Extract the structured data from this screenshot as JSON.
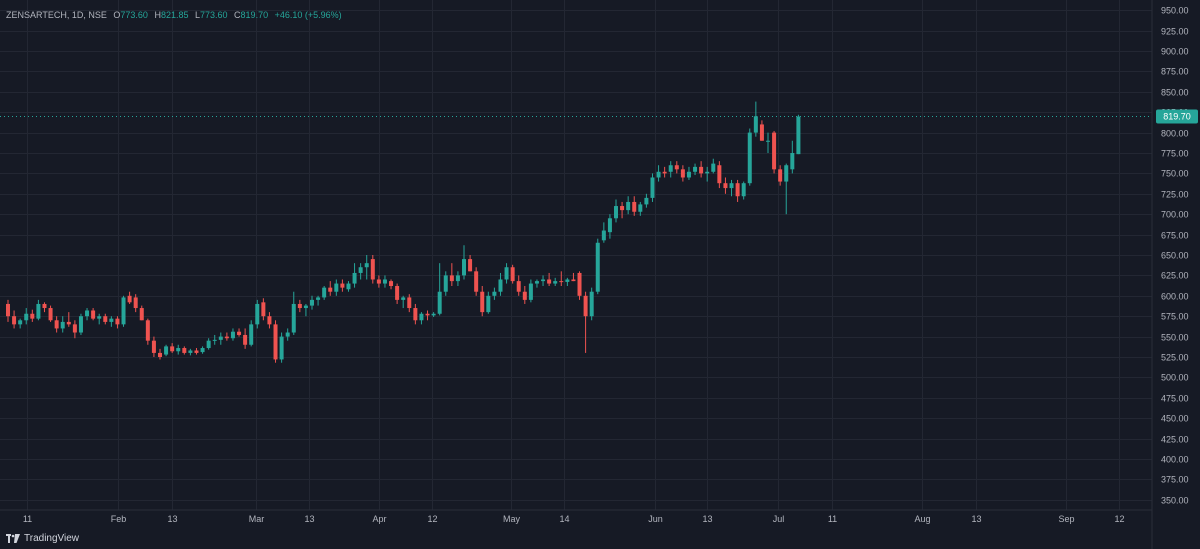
{
  "legend": {
    "symbol": "ZENSARTECH, 1D, NSE",
    "open_label": "O",
    "open": "773.60",
    "high_label": "H",
    "high": "821.85",
    "low_label": "L",
    "low": "773.60",
    "close_label": "C",
    "close": "819.70",
    "change": "+46.10 (+5.96%)"
  },
  "footer": {
    "brand": "TradingView",
    "logo_icon": "tradingview-logo-icon"
  },
  "colors": {
    "background": "#161a25",
    "up": "#26a69a",
    "down": "#ef5350",
    "grid": "#232733",
    "axis_text": "#b2b5be",
    "price_tag": "#26a69a"
  },
  "chart_data": {
    "type": "candlestick",
    "ylim": [
      337.5,
      962.5
    ],
    "y_ticks": [
      "350.00",
      "375.00",
      "400.00",
      "425.00",
      "450.00",
      "475.00",
      "500.00",
      "525.00",
      "550.00",
      "575.00",
      "600.00",
      "625.00",
      "650.00",
      "675.00",
      "700.00",
      "725.00",
      "750.00",
      "775.00",
      "800.00",
      "825.00",
      "850.00",
      "875.00",
      "900.00",
      "925.00",
      "950.00"
    ],
    "x_ticks": [
      "11",
      "Feb",
      "13",
      "Mar",
      "13",
      "Apr",
      "12",
      "May",
      "14",
      "Jun",
      "13",
      "Jul",
      "11",
      "Aug",
      "13",
      "Sep",
      "12"
    ],
    "last_price": "819.70",
    "series": [
      {
        "o": 590,
        "h": 595,
        "l": 568,
        "c": 575
      },
      {
        "o": 575,
        "h": 582,
        "l": 560,
        "c": 565
      },
      {
        "o": 565,
        "h": 572,
        "l": 560,
        "c": 570
      },
      {
        "o": 570,
        "h": 585,
        "l": 565,
        "c": 578
      },
      {
        "o": 578,
        "h": 583,
        "l": 568,
        "c": 572
      },
      {
        "o": 572,
        "h": 595,
        "l": 570,
        "c": 590
      },
      {
        "o": 590,
        "h": 592,
        "l": 580,
        "c": 585
      },
      {
        "o": 585,
        "h": 588,
        "l": 568,
        "c": 570
      },
      {
        "o": 570,
        "h": 575,
        "l": 555,
        "c": 560
      },
      {
        "o": 560,
        "h": 575,
        "l": 555,
        "c": 568
      },
      {
        "o": 568,
        "h": 580,
        "l": 562,
        "c": 565
      },
      {
        "o": 565,
        "h": 570,
        "l": 548,
        "c": 555
      },
      {
        "o": 555,
        "h": 578,
        "l": 552,
        "c": 575
      },
      {
        "o": 575,
        "h": 585,
        "l": 570,
        "c": 582
      },
      {
        "o": 582,
        "h": 585,
        "l": 570,
        "c": 572
      },
      {
        "o": 572,
        "h": 578,
        "l": 565,
        "c": 575
      },
      {
        "o": 575,
        "h": 578,
        "l": 565,
        "c": 568
      },
      {
        "o": 568,
        "h": 575,
        "l": 562,
        "c": 572
      },
      {
        "o": 572,
        "h": 575,
        "l": 560,
        "c": 565
      },
      {
        "o": 565,
        "h": 600,
        "l": 562,
        "c": 598
      },
      {
        "o": 600,
        "h": 605,
        "l": 590,
        "c": 592
      },
      {
        "o": 598,
        "h": 602,
        "l": 580,
        "c": 585
      },
      {
        "o": 585,
        "h": 588,
        "l": 570,
        "c": 570
      },
      {
        "o": 570,
        "h": 572,
        "l": 540,
        "c": 545
      },
      {
        "o": 545,
        "h": 550,
        "l": 525,
        "c": 530
      },
      {
        "o": 530,
        "h": 535,
        "l": 522,
        "c": 525
      },
      {
        "o": 528,
        "h": 540,
        "l": 526,
        "c": 538
      },
      {
        "o": 538,
        "h": 542,
        "l": 530,
        "c": 532
      },
      {
        "o": 532,
        "h": 540,
        "l": 528,
        "c": 536
      },
      {
        "o": 536,
        "h": 538,
        "l": 528,
        "c": 530
      },
      {
        "o": 530,
        "h": 535,
        "l": 527,
        "c": 533
      },
      {
        "o": 533,
        "h": 536,
        "l": 528,
        "c": 530
      },
      {
        "o": 531,
        "h": 538,
        "l": 529,
        "c": 536
      },
      {
        "o": 536,
        "h": 548,
        "l": 534,
        "c": 545
      },
      {
        "o": 545,
        "h": 552,
        "l": 540,
        "c": 546
      },
      {
        "o": 546,
        "h": 555,
        "l": 540,
        "c": 550
      },
      {
        "o": 550,
        "h": 555,
        "l": 545,
        "c": 548
      },
      {
        "o": 548,
        "h": 560,
        "l": 545,
        "c": 556
      },
      {
        "o": 556,
        "h": 560,
        "l": 550,
        "c": 552
      },
      {
        "o": 552,
        "h": 560,
        "l": 535,
        "c": 540
      },
      {
        "o": 540,
        "h": 570,
        "l": 538,
        "c": 565
      },
      {
        "o": 565,
        "h": 595,
        "l": 560,
        "c": 590
      },
      {
        "o": 592,
        "h": 597,
        "l": 570,
        "c": 575
      },
      {
        "o": 575,
        "h": 580,
        "l": 560,
        "c": 565
      },
      {
        "o": 565,
        "h": 570,
        "l": 518,
        "c": 522
      },
      {
        "o": 522,
        "h": 555,
        "l": 518,
        "c": 550
      },
      {
        "o": 550,
        "h": 560,
        "l": 545,
        "c": 555
      },
      {
        "o": 555,
        "h": 605,
        "l": 552,
        "c": 590
      },
      {
        "o": 590,
        "h": 595,
        "l": 580,
        "c": 585
      },
      {
        "o": 585,
        "h": 590,
        "l": 575,
        "c": 588
      },
      {
        "o": 588,
        "h": 600,
        "l": 583,
        "c": 595
      },
      {
        "o": 595,
        "h": 600,
        "l": 588,
        "c": 598
      },
      {
        "o": 598,
        "h": 612,
        "l": 595,
        "c": 610
      },
      {
        "o": 610,
        "h": 618,
        "l": 600,
        "c": 605
      },
      {
        "o": 605,
        "h": 620,
        "l": 600,
        "c": 615
      },
      {
        "o": 615,
        "h": 620,
        "l": 605,
        "c": 610
      },
      {
        "o": 608,
        "h": 618,
        "l": 605,
        "c": 615
      },
      {
        "o": 615,
        "h": 640,
        "l": 610,
        "c": 628
      },
      {
        "o": 628,
        "h": 640,
        "l": 620,
        "c": 635
      },
      {
        "o": 635,
        "h": 650,
        "l": 620,
        "c": 640
      },
      {
        "o": 645,
        "h": 650,
        "l": 615,
        "c": 620
      },
      {
        "o": 620,
        "h": 625,
        "l": 610,
        "c": 615
      },
      {
        "o": 615,
        "h": 625,
        "l": 610,
        "c": 620
      },
      {
        "o": 618,
        "h": 620,
        "l": 608,
        "c": 612
      },
      {
        "o": 612,
        "h": 615,
        "l": 590,
        "c": 595
      },
      {
        "o": 595,
        "h": 600,
        "l": 585,
        "c": 598
      },
      {
        "o": 598,
        "h": 602,
        "l": 580,
        "c": 585
      },
      {
        "o": 585,
        "h": 590,
        "l": 565,
        "c": 570
      },
      {
        "o": 570,
        "h": 580,
        "l": 565,
        "c": 578
      },
      {
        "o": 578,
        "h": 582,
        "l": 570,
        "c": 576
      },
      {
        "o": 576,
        "h": 580,
        "l": 574,
        "c": 578
      },
      {
        "o": 578,
        "h": 640,
        "l": 576,
        "c": 605
      },
      {
        "o": 605,
        "h": 630,
        "l": 600,
        "c": 625
      },
      {
        "o": 625,
        "h": 640,
        "l": 612,
        "c": 618
      },
      {
        "o": 618,
        "h": 630,
        "l": 612,
        "c": 625
      },
      {
        "o": 625,
        "h": 662,
        "l": 620,
        "c": 645
      },
      {
        "o": 645,
        "h": 650,
        "l": 630,
        "c": 630
      },
      {
        "o": 630,
        "h": 635,
        "l": 600,
        "c": 605
      },
      {
        "o": 605,
        "h": 612,
        "l": 575,
        "c": 580
      },
      {
        "o": 580,
        "h": 605,
        "l": 578,
        "c": 600
      },
      {
        "o": 600,
        "h": 610,
        "l": 595,
        "c": 605
      },
      {
        "o": 605,
        "h": 628,
        "l": 600,
        "c": 620
      },
      {
        "o": 620,
        "h": 640,
        "l": 615,
        "c": 635
      },
      {
        "o": 635,
        "h": 638,
        "l": 615,
        "c": 618
      },
      {
        "o": 618,
        "h": 625,
        "l": 600,
        "c": 605
      },
      {
        "o": 605,
        "h": 612,
        "l": 590,
        "c": 595
      },
      {
        "o": 595,
        "h": 620,
        "l": 592,
        "c": 615
      },
      {
        "o": 615,
        "h": 620,
        "l": 610,
        "c": 618
      },
      {
        "o": 618,
        "h": 625,
        "l": 612,
        "c": 620
      },
      {
        "o": 620,
        "h": 628,
        "l": 612,
        "c": 615
      },
      {
        "o": 615,
        "h": 622,
        "l": 612,
        "c": 618
      },
      {
        "o": 618,
        "h": 630,
        "l": 612,
        "c": 617
      },
      {
        "o": 617,
        "h": 622,
        "l": 612,
        "c": 620
      },
      {
        "o": 620,
        "h": 628,
        "l": 618,
        "c": 618
      },
      {
        "o": 628,
        "h": 630,
        "l": 595,
        "c": 600
      },
      {
        "o": 600,
        "h": 605,
        "l": 530,
        "c": 575
      },
      {
        "o": 575,
        "h": 610,
        "l": 570,
        "c": 605
      },
      {
        "o": 605,
        "h": 670,
        "l": 602,
        "c": 665
      },
      {
        "o": 668,
        "h": 690,
        "l": 665,
        "c": 680
      },
      {
        "o": 678,
        "h": 700,
        "l": 670,
        "c": 695
      },
      {
        "o": 695,
        "h": 718,
        "l": 690,
        "c": 710
      },
      {
        "o": 710,
        "h": 715,
        "l": 695,
        "c": 705
      },
      {
        "o": 705,
        "h": 722,
        "l": 700,
        "c": 715
      },
      {
        "o": 715,
        "h": 722,
        "l": 698,
        "c": 703
      },
      {
        "o": 703,
        "h": 715,
        "l": 698,
        "c": 712
      },
      {
        "o": 712,
        "h": 725,
        "l": 708,
        "c": 720
      },
      {
        "o": 720,
        "h": 750,
        "l": 715,
        "c": 745
      },
      {
        "o": 745,
        "h": 760,
        "l": 740,
        "c": 752
      },
      {
        "o": 752,
        "h": 758,
        "l": 745,
        "c": 750
      },
      {
        "o": 752,
        "h": 765,
        "l": 745,
        "c": 760
      },
      {
        "o": 760,
        "h": 765,
        "l": 750,
        "c": 755
      },
      {
        "o": 755,
        "h": 760,
        "l": 740,
        "c": 745
      },
      {
        "o": 745,
        "h": 758,
        "l": 742,
        "c": 752
      },
      {
        "o": 752,
        "h": 762,
        "l": 748,
        "c": 758
      },
      {
        "o": 758,
        "h": 765,
        "l": 745,
        "c": 750
      },
      {
        "o": 750,
        "h": 758,
        "l": 740,
        "c": 752
      },
      {
        "o": 752,
        "h": 768,
        "l": 750,
        "c": 762
      },
      {
        "o": 760,
        "h": 765,
        "l": 732,
        "c": 738
      },
      {
        "o": 738,
        "h": 745,
        "l": 725,
        "c": 732
      },
      {
        "o": 732,
        "h": 742,
        "l": 722,
        "c": 738
      },
      {
        "o": 738,
        "h": 742,
        "l": 715,
        "c": 722
      },
      {
        "o": 722,
        "h": 740,
        "l": 718,
        "c": 738
      },
      {
        "o": 738,
        "h": 805,
        "l": 735,
        "c": 800
      },
      {
        "o": 800,
        "h": 838,
        "l": 795,
        "c": 820
      },
      {
        "o": 810,
        "h": 815,
        "l": 790,
        "c": 790
      },
      {
        "o": 790,
        "h": 800,
        "l": 775,
        "c": 790
      },
      {
        "o": 800,
        "h": 802,
        "l": 750,
        "c": 755
      },
      {
        "o": 755,
        "h": 760,
        "l": 735,
        "c": 740
      },
      {
        "o": 740,
        "h": 762,
        "l": 700,
        "c": 760
      },
      {
        "o": 755,
        "h": 790,
        "l": 750,
        "c": 775
      },
      {
        "o": 773.6,
        "h": 821.85,
        "l": 773.6,
        "c": 819.7
      }
    ]
  }
}
